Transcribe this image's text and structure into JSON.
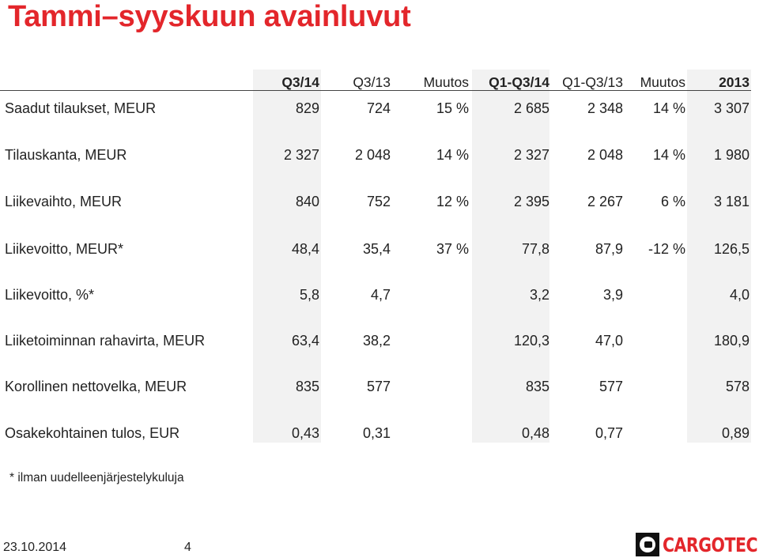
{
  "title": "Tammi–syyskuun avainluvut",
  "columns": [
    "Q3/14",
    "Q3/13",
    "Muutos",
    "Q1-Q3/14",
    "Q1-Q3/13",
    "Muutos",
    "2013"
  ],
  "rows": [
    {
      "label": "Saadut tilaukset, MEUR",
      "values": [
        "829",
        "724",
        "15 %",
        "2 685",
        "2 348",
        "14 %",
        "3 307"
      ]
    },
    {
      "label": "Tilauskanta, MEUR",
      "values": [
        "2 327",
        "2 048",
        "14 %",
        "2 327",
        "2 048",
        "14 %",
        "1 980"
      ]
    },
    {
      "label": "Liikevaihto, MEUR",
      "values": [
        "840",
        "752",
        "12 %",
        "2 395",
        "2 267",
        "6 %",
        "3 181"
      ]
    },
    {
      "label": "Liikevoitto, MEUR*",
      "values": [
        "48,4",
        "35,4",
        "37 %",
        "77,8",
        "87,9",
        "-12 %",
        "126,5"
      ]
    },
    {
      "label": "Liikevoitto, %*",
      "values": [
        "5,8",
        "4,7",
        "",
        "3,2",
        "3,9",
        "",
        "4,0"
      ]
    },
    {
      "label": "Liiketoiminnan rahavirta, MEUR",
      "values": [
        "63,4",
        "38,2",
        "",
        "120,3",
        "47,0",
        "",
        "180,9"
      ]
    },
    {
      "label": "Korollinen nettovelka, MEUR",
      "values": [
        "835",
        "577",
        "",
        "835",
        "577",
        "",
        "578"
      ]
    },
    {
      "label": "Osakekohtainen tulos, EUR",
      "values": [
        "0,43",
        "0,31",
        "",
        "0,48",
        "0,77",
        "",
        "0,89"
      ]
    }
  ],
  "footnote": "* ilman uudelleenjärjestelykuluja",
  "footer": {
    "date": "23.10.2014",
    "page": "4",
    "logo_text": "CARGOTEC"
  },
  "colors": {
    "title": "#e3262b",
    "shade": "#f2f2f2",
    "logo": "#e3262b"
  }
}
